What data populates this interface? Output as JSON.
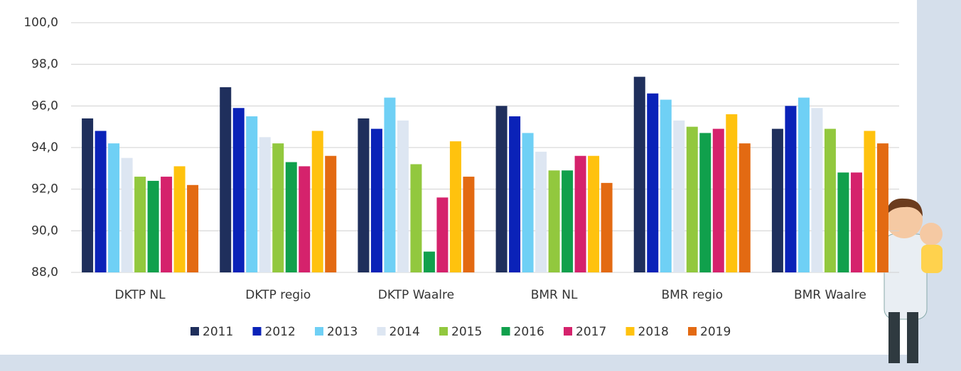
{
  "chart_data": {
    "type": "bar",
    "categories": [
      "DKTP NL",
      "DKTP regio",
      "DKTP Waalre",
      "BMR NL",
      "BMR regio",
      "BMR Waalre"
    ],
    "series": [
      {
        "name": "2011",
        "color": "#1f2f5c",
        "values": [
          95.4,
          96.9,
          95.4,
          96.0,
          97.4,
          94.9
        ]
      },
      {
        "name": "2012",
        "color": "#0a22b8",
        "values": [
          94.8,
          95.9,
          94.9,
          95.5,
          96.6,
          96.0
        ]
      },
      {
        "name": "2013",
        "color": "#6fd0f5",
        "values": [
          94.2,
          95.5,
          96.4,
          94.7,
          96.3,
          96.4
        ]
      },
      {
        "name": "2014",
        "color": "#dde6f2",
        "values": [
          93.5,
          94.5,
          95.3,
          93.8,
          95.3,
          95.9
        ]
      },
      {
        "name": "2015",
        "color": "#92c83e",
        "values": [
          92.6,
          94.2,
          93.2,
          92.9,
          95.0,
          94.9
        ]
      },
      {
        "name": "2016",
        "color": "#10a04c",
        "values": [
          92.4,
          93.3,
          89.0,
          92.9,
          94.7,
          92.8
        ]
      },
      {
        "name": "2017",
        "color": "#d5226c",
        "values": [
          92.6,
          93.1,
          91.6,
          93.6,
          94.9,
          92.8
        ]
      },
      {
        "name": "2018",
        "color": "#ffc20e",
        "values": [
          93.1,
          94.8,
          94.3,
          93.6,
          95.6,
          94.8
        ]
      },
      {
        "name": "2019",
        "color": "#e36a12",
        "values": [
          92.2,
          93.6,
          92.6,
          92.3,
          94.2,
          94.2
        ]
      }
    ],
    "ylim": [
      88,
      100
    ],
    "yticks": [
      {
        "value": 88,
        "label": "88,0"
      },
      {
        "value": 90,
        "label": "90,0"
      },
      {
        "value": 92,
        "label": "92,0"
      },
      {
        "value": 94,
        "label": "94,0"
      },
      {
        "value": 96,
        "label": "96,0"
      },
      {
        "value": 98,
        "label": "98,0"
      },
      {
        "value": 100,
        "label": "100,0"
      }
    ],
    "grid": true
  }
}
